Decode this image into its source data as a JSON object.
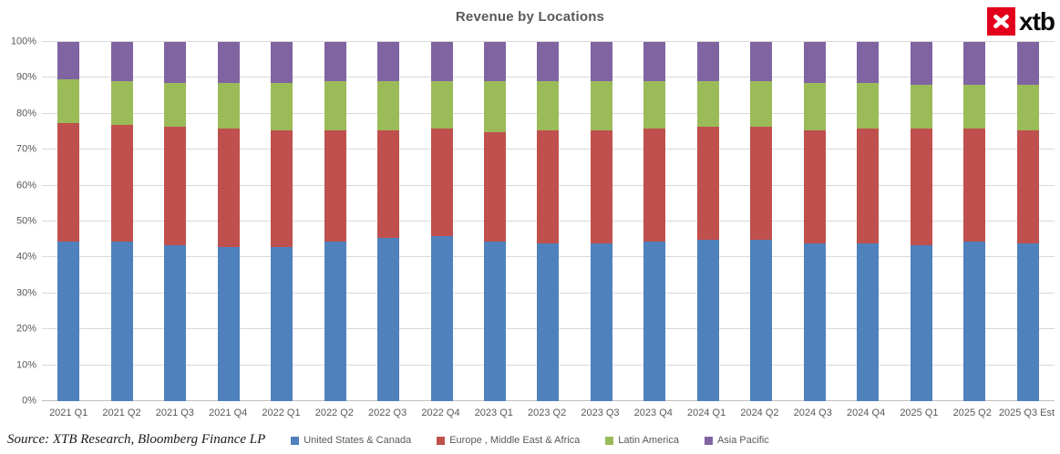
{
  "title": "Revenue by Locations",
  "logo": {
    "text": "xtb",
    "box_color": "#e3001b"
  },
  "source": "Source: XTB Research, Bloomberg Finance LP",
  "chart_data": {
    "type": "bar",
    "stacked": true,
    "percent_stacked": true,
    "title": "Revenue by Locations",
    "xlabel": "",
    "ylabel": "",
    "ylim": [
      0,
      100
    ],
    "grid": true,
    "legend_position": "bottom",
    "y_ticks": [
      "0%",
      "10%",
      "20%",
      "30%",
      "40%",
      "50%",
      "60%",
      "70%",
      "80%",
      "90%",
      "100%"
    ],
    "categories": [
      "2021 Q1",
      "2021 Q2",
      "2021 Q3",
      "2021 Q4",
      "2022 Q1",
      "2022 Q2",
      "2022 Q3",
      "2022 Q4",
      "2023 Q1",
      "2023 Q2",
      "2023 Q3",
      "2023 Q4",
      "2024 Q1",
      "2024 Q2",
      "2024 Q3",
      "2024 Q4",
      "2025 Q1",
      "2025 Q2",
      "2025 Q3 Est"
    ],
    "series": [
      {
        "name": "United States & Canada",
        "color": "#4F81BD",
        "values": [
          44.5,
          44.5,
          43.5,
          43,
          43,
          44.5,
          45.5,
          46,
          44.5,
          44,
          44,
          44.5,
          45,
          45,
          44,
          44,
          43.5,
          44.5,
          44
        ]
      },
      {
        "name": "Europe , Middle East & Africa",
        "color": "#C0504D",
        "values": [
          33,
          32.5,
          33,
          33,
          32.5,
          31,
          30,
          30,
          30.5,
          31.5,
          31.5,
          31.5,
          31.5,
          31.5,
          31.5,
          32,
          32.5,
          31.5,
          31.5
        ]
      },
      {
        "name": "Latin America",
        "color": "#9BBB59",
        "values": [
          12,
          12,
          12,
          12.5,
          13,
          13.5,
          13.5,
          13,
          14,
          13.5,
          13.5,
          13,
          12.5,
          12.5,
          13,
          12.5,
          12,
          12,
          12.5
        ]
      },
      {
        "name": "Asia Pacific",
        "color": "#8064A2",
        "values": [
          10.5,
          11,
          11.5,
          11.5,
          11.5,
          11,
          11,
          11,
          11,
          11,
          11,
          11,
          11,
          11,
          11.5,
          11.5,
          12,
          12,
          12
        ]
      }
    ]
  }
}
